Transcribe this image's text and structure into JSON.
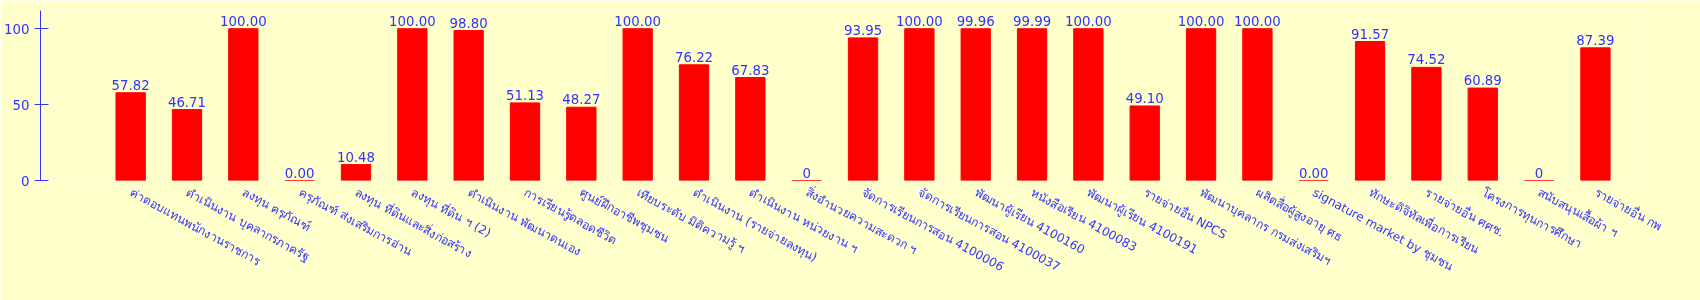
{
  "chart_data": {
    "type": "bar",
    "categories": [
      "ค่าตอบแทนพนักงานราชการ",
      "ดำเนินงาน บุคลากรภาครัฐ",
      "ลงทุน ครุภัณฑ์",
      "ครุภัณฑ์ ส่งเสริมการอ่าน",
      "ลงทุน ที่ดินและสิ่งก่อสร้าง",
      "ลงทุน ที่ดิน ฯ (2)",
      "ดำเนินงาน พัฒนาตนเอง",
      "การเรียนรู้ตลอดชีวิต",
      "ศูนย์ฝึกอาชีพชุมชน",
      "เทียบระดับ มิติความรู้ ฯ",
      "ดำเนินงาน (รายจ่ายลงทุน)",
      "ดำเนินงาน หน่วยงาน ฯ",
      "สิ่งอำนวยความสะดวก ฯ",
      "จัดการเรียนการสอน 4100006",
      "จัดการเรียนการสอน 4100037",
      "พัฒนาผู้เรียน 4100160",
      "หนังสือเรียน 4100083",
      "พัฒนาผู้เรียน 4100191",
      "รายจ่ายอื่น NPCS",
      "พัฒนาบุคลากร กรมส่งเสริมฯ",
      "ผลิตสื่อผู้สูงอายุ ศธ",
      "signature market by ชุมชน",
      "ทักษะดิจิทัลเพื่อการเรียน",
      "รายจ่ายอื่น ศศช.",
      "โครงการทุนการศึกษา",
      "สนับสนุนเสื้อผ้า ฯ",
      "รายจ่ายอื่น กพ"
    ],
    "values": [
      57.82,
      46.71,
      100,
      0,
      10.48,
      100,
      98.8,
      51.13,
      48.27,
      100,
      76.22,
      67.83,
      0,
      93.95,
      100,
      99.96,
      99.99,
      100,
      49.1,
      100,
      100,
      0,
      91.57,
      74.52,
      60.89,
      0,
      87.39
    ],
    "value_labels": [
      "57.82",
      "46.71",
      "100.00",
      "0.00",
      "10.48",
      "100.00",
      "98.80",
      "51.13",
      "48.27",
      "100.00",
      "76.22",
      "67.83",
      "0",
      "93.95",
      "100.00",
      "99.96",
      "99.99",
      "100.00",
      "49.10",
      "100.00",
      "100.00",
      "0.00",
      "91.57",
      "74.52",
      "60.89",
      "0",
      "87.39"
    ],
    "color": "#ff0000",
    "ylim": [
      0,
      100
    ],
    "yticks": [
      0,
      50,
      100
    ],
    "grid": false
  }
}
